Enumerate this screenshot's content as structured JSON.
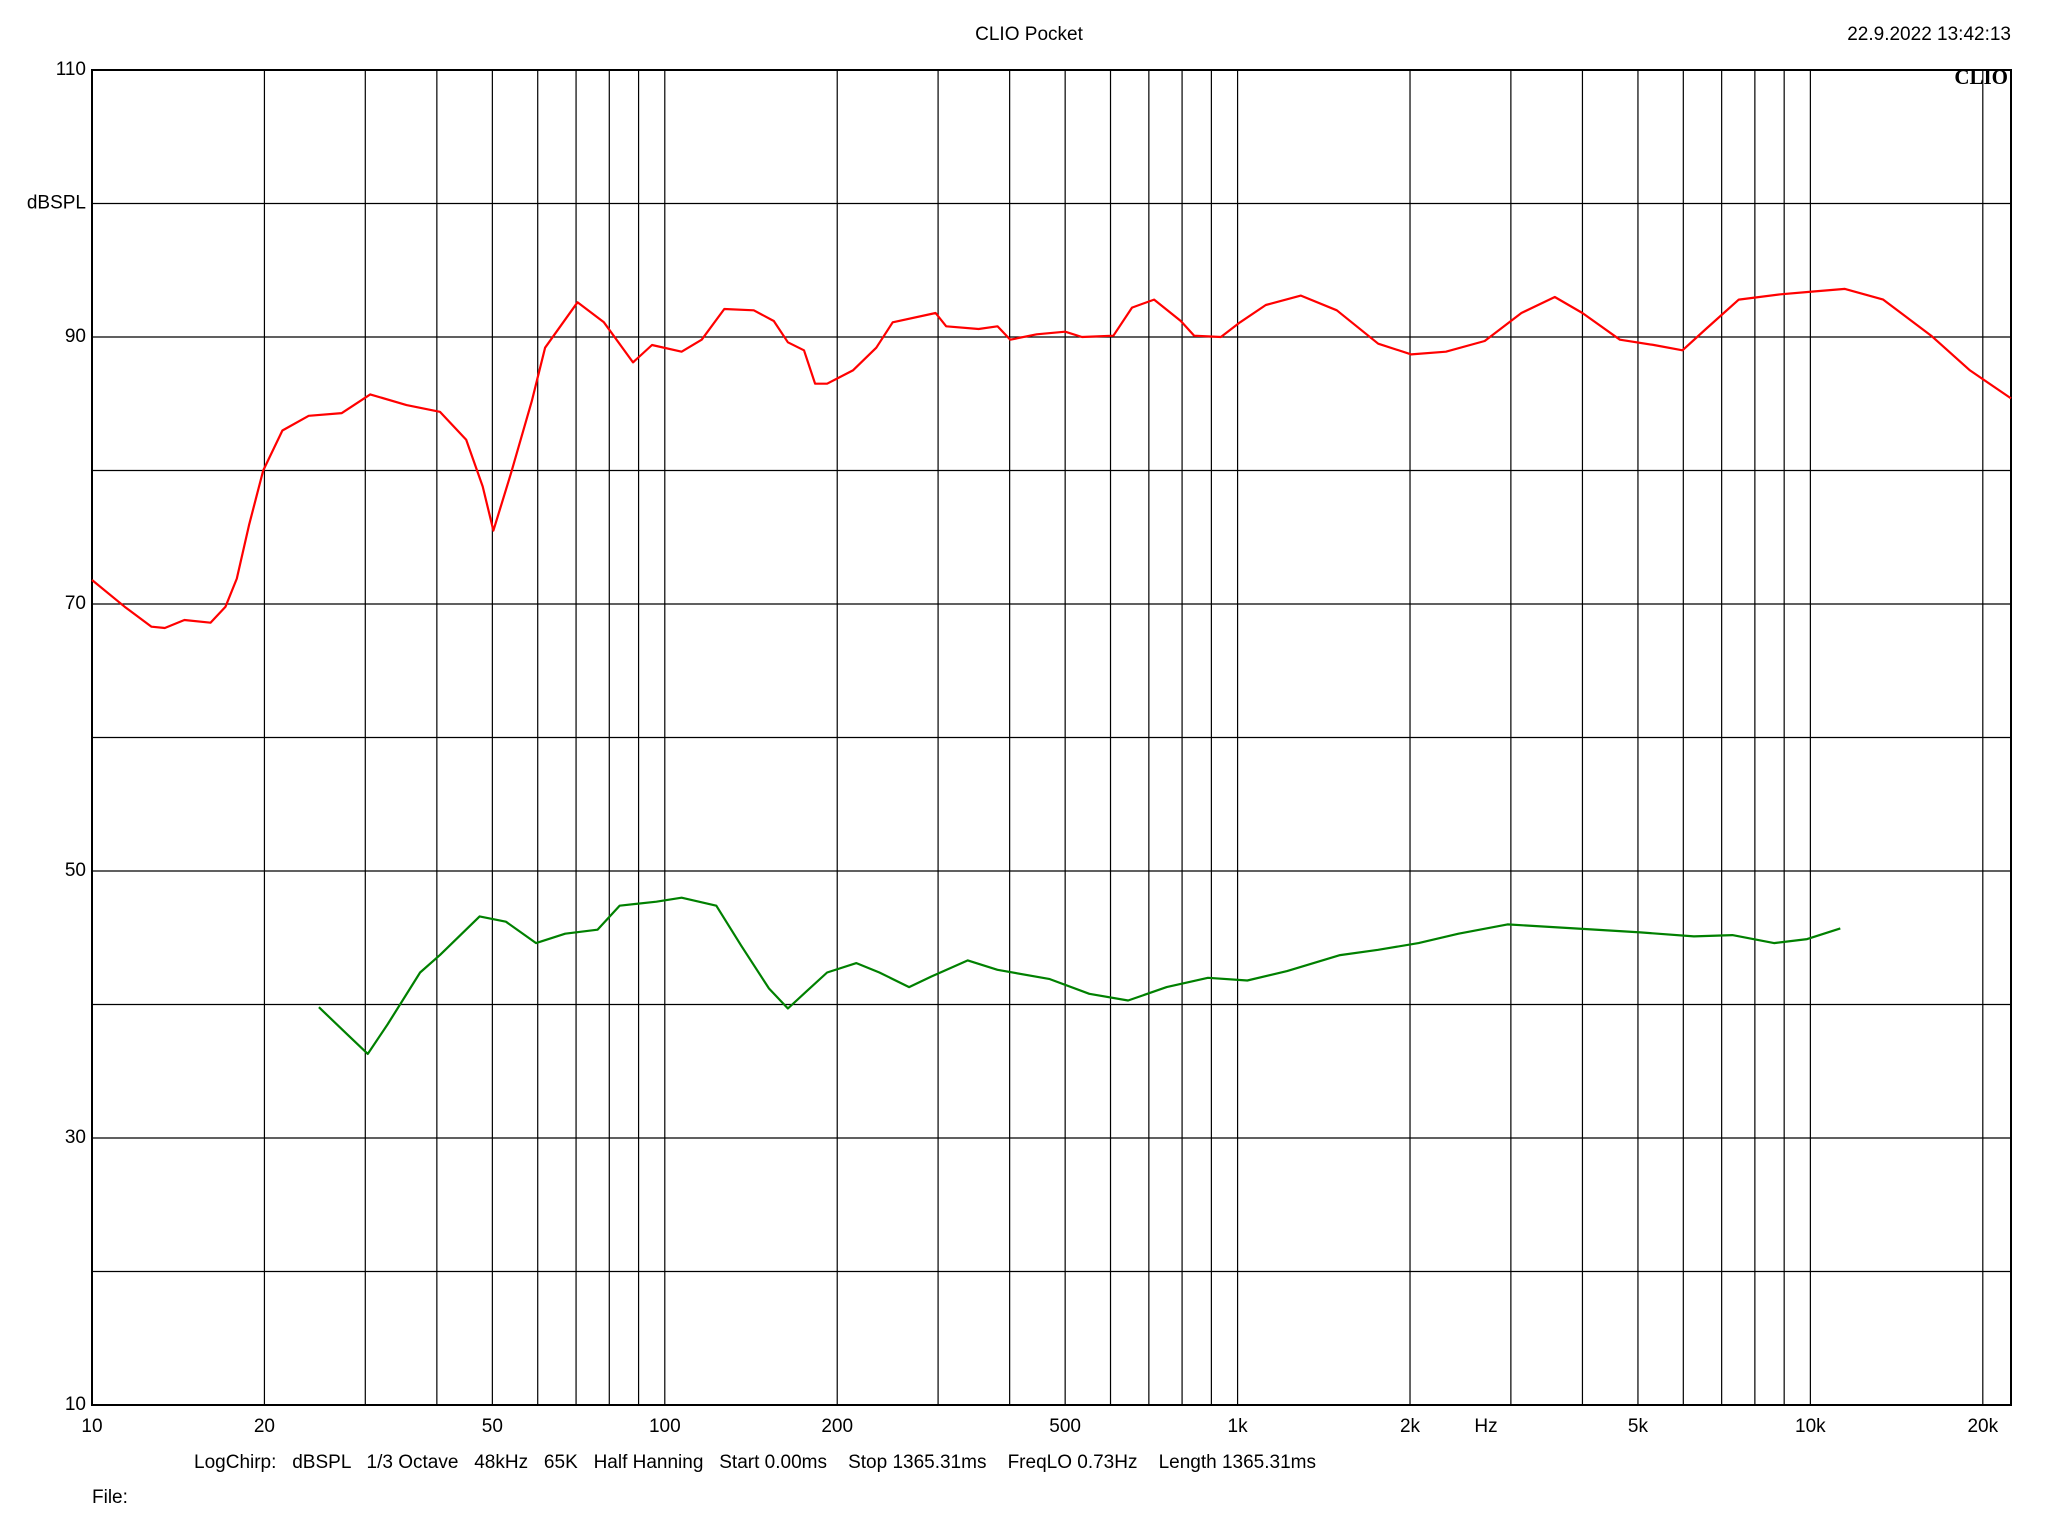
{
  "chart_data": {
    "type": "line",
    "title": "CLIO Pocket",
    "timestamp": "22.9.2022 13:42:13",
    "brand": "CLIO",
    "y_label": "dBSPL",
    "x_label": "Hz",
    "footer": "LogChirp:   dBSPL   1/3 Octave   48kHz   65K   Half Hanning   Start 0.00ms    Stop 1365.31ms    FreqLO 0.73Hz    Length 1365.31ms",
    "file_label": "File:",
    "xscale": "log",
    "grid": true,
    "xlim": [
      10,
      22400
    ],
    "ylim": [
      10,
      110
    ],
    "xticks": [
      10,
      20,
      50,
      100,
      200,
      500,
      {
        "value": 1000,
        "label": "1k"
      },
      {
        "value": 2000,
        "label": "2k"
      },
      {
        "value": 5000,
        "label": "5k"
      },
      {
        "value": 10000,
        "label": "10k"
      },
      {
        "value": 20000,
        "label": "20k"
      }
    ],
    "xgrid": [
      30,
      40,
      60,
      70,
      80,
      90,
      300,
      400,
      600,
      700,
      800,
      900,
      3000,
      4000,
      6000,
      7000,
      8000,
      9000
    ],
    "yticks": [
      10,
      30,
      50,
      70,
      90,
      110
    ],
    "ygrid": [
      20,
      40,
      60,
      80,
      100
    ],
    "series": [
      {
        "color": "#ff0000",
        "x": [
          10,
          11.4,
          12.7,
          13.4,
          14.5,
          16.1,
          17.1,
          17.9,
          18.8,
          19.9,
          21.5,
          23.9,
          27.3,
          30.6,
          35.4,
          40.5,
          45,
          48.1,
          50.2,
          53.9,
          58.6,
          61.8,
          70.4,
          78.3,
          88,
          95,
          107,
          116,
          127,
          143,
          155,
          164,
          175,
          183,
          192,
          213,
          234,
          250,
          297,
          310,
          353,
          381,
          401,
          446,
          500,
          535,
          607,
          654,
          715,
          796,
          840,
          935,
          1010,
          1120,
          1290,
          1490,
          1760,
          2010,
          2310,
          2700,
          3130,
          3580,
          4000,
          4650,
          5330,
          5980,
          6570,
          7500,
          8870,
          10060,
          11490,
          13400,
          16250,
          19000,
          22400
        ],
        "values": [
          71.8,
          69.8,
          68.3,
          68.2,
          68.8,
          68.6,
          69.8,
          71.9,
          75.9,
          80.0,
          83.0,
          84.1,
          84.3,
          85.7,
          84.9,
          84.4,
          82.3,
          78.8,
          75.5,
          79.8,
          85.2,
          89.2,
          92.6,
          91.1,
          88.1,
          89.4,
          88.9,
          89.8,
          92.1,
          92.0,
          91.2,
          89.6,
          89.0,
          86.5,
          86.5,
          87.5,
          89.2,
          91.1,
          91.8,
          90.8,
          90.6,
          90.8,
          89.8,
          90.2,
          90.4,
          90.0,
          90.1,
          92.2,
          92.8,
          91.2,
          90.1,
          90.0,
          91.1,
          92.4,
          93.1,
          92.0,
          89.5,
          88.7,
          88.9,
          89.7,
          91.8,
          93.0,
          91.8,
          89.8,
          89.4,
          89.0,
          90.6,
          92.8,
          93.2,
          93.4,
          93.6,
          92.8,
          90.1,
          87.5,
          85.4
        ]
      },
      {
        "color": "#008000",
        "x": [
          24.9,
          28,
          30.3,
          32.8,
          37.4,
          40.5,
          47.5,
          52.8,
          59.6,
          67,
          76.3,
          83.4,
          96.7,
          107,
          123,
          136,
          152,
          164,
          177,
          192,
          216,
          237,
          267,
          292,
          338,
          381,
          470,
          551,
          644,
          752,
          888,
          1040,
          1220,
          1510,
          1760,
          2070,
          2430,
          2960,
          3870,
          5050,
          6260,
          7310,
          8640,
          9870,
          11280
        ],
        "values": [
          39.8,
          37.7,
          36.3,
          38.5,
          42.4,
          43.7,
          46.6,
          46.2,
          44.6,
          45.3,
          45.6,
          47.4,
          47.7,
          48.0,
          47.4,
          44.4,
          41.2,
          39.7,
          41.0,
          42.4,
          43.1,
          42.4,
          41.3,
          42.1,
          43.3,
          42.6,
          41.9,
          40.8,
          40.3,
          41.3,
          42.0,
          41.8,
          42.5,
          43.7,
          44.1,
          44.6,
          45.3,
          46.0,
          45.7,
          45.4,
          45.1,
          45.2,
          44.6,
          44.9,
          45.7
        ]
      }
    ]
  }
}
